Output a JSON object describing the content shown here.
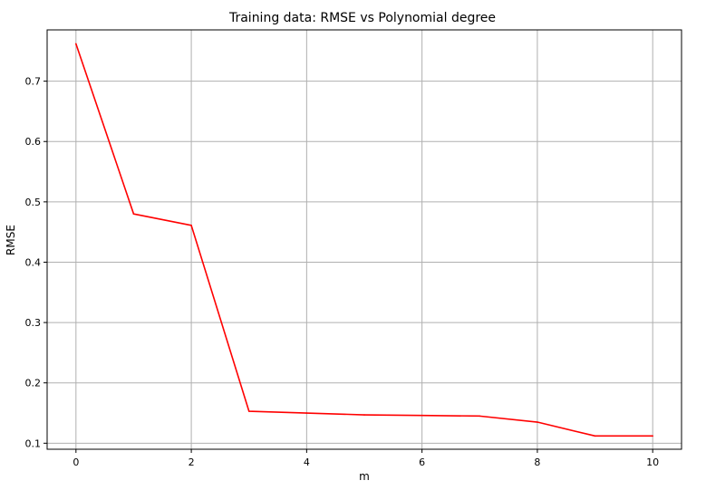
{
  "chart_data": {
    "type": "line",
    "title": "Training data: RMSE vs Polynomial degree",
    "xlabel": "m",
    "ylabel": "RMSE",
    "xlim": [
      -0.5,
      10.5
    ],
    "ylim": [
      0.09,
      0.785
    ],
    "xticks": [
      0,
      2,
      4,
      6,
      8,
      10
    ],
    "yticks": [
      0.1,
      0.2,
      0.3,
      0.4,
      0.5,
      0.6,
      0.7
    ],
    "xtick_labels": [
      "0",
      "2",
      "4",
      "6",
      "8",
      "10"
    ],
    "ytick_labels": [
      "0.1",
      "0.2",
      "0.3",
      "0.4",
      "0.5",
      "0.6",
      "0.7"
    ],
    "grid": true,
    "series": [
      {
        "color": "#ff0000",
        "x": [
          0,
          1,
          2,
          3,
          4,
          5,
          6,
          7,
          8,
          9,
          10
        ],
        "y": [
          0.762,
          0.48,
          0.461,
          0.153,
          0.15,
          0.147,
          0.146,
          0.145,
          0.135,
          0.112,
          0.112
        ]
      }
    ]
  }
}
